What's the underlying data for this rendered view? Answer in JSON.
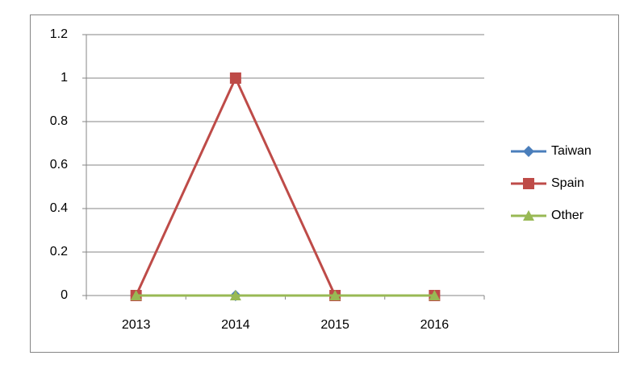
{
  "chart_data": {
    "type": "line",
    "categories": [
      "2013",
      "2014",
      "2015",
      "2016"
    ],
    "series": [
      {
        "name": "Taiwan",
        "color": "#4a7ebb",
        "marker": "diamond",
        "values": [
          0,
          0,
          0,
          0
        ]
      },
      {
        "name": "Spain",
        "color": "#be4b48",
        "marker": "square",
        "values": [
          0,
          1,
          0,
          0
        ]
      },
      {
        "name": "Other",
        "color": "#98b954",
        "marker": "triangle",
        "values": [
          0,
          0,
          0,
          0
        ]
      }
    ],
    "ylim": [
      0,
      1.2
    ],
    "yticks": [
      0,
      0.2,
      0.4,
      0.6,
      0.8,
      1,
      1.2
    ],
    "grid": true,
    "legend": "right"
  }
}
